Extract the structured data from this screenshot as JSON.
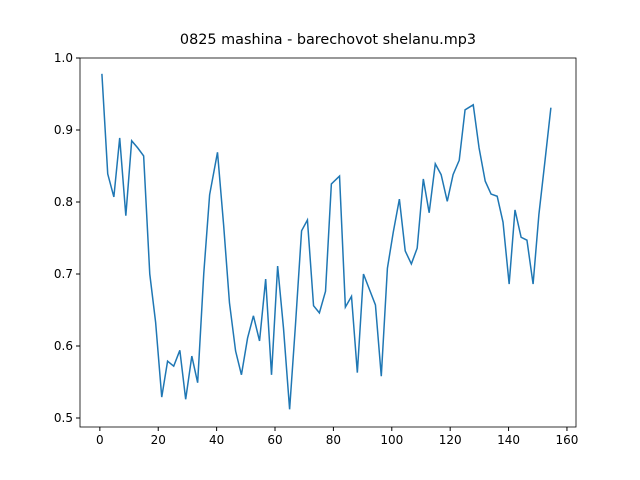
{
  "chart_data": {
    "type": "line",
    "title": "0825 mashina - barechovot shelanu.mp3",
    "x": [
      0.7,
      2.7,
      4.8,
      6.8,
      8.9,
      10.9,
      13.0,
      15.0,
      17.1,
      19.1,
      21.2,
      23.2,
      25.3,
      27.4,
      29.4,
      31.5,
      33.5,
      35.6,
      37.6,
      40.3,
      42.4,
      44.4,
      46.5,
      48.5,
      50.6,
      52.6,
      54.7,
      56.8,
      58.8,
      60.9,
      62.9,
      65.0,
      67.0,
      69.1,
      71.1,
      73.2,
      75.2,
      77.3,
      79.3,
      82.1,
      84.1,
      86.2,
      88.2,
      90.3,
      92.3,
      94.4,
      96.4,
      98.5,
      100.5,
      102.6,
      104.6,
      106.7,
      108.7,
      110.8,
      112.8,
      114.9,
      116.9,
      119.0,
      121.0,
      123.1,
      125.1,
      127.9,
      129.9,
      132.0,
      134.0,
      136.1,
      138.1,
      140.2,
      142.2,
      144.3,
      146.3,
      148.4,
      150.4,
      152.5,
      154.5
    ],
    "series": [
      {
        "color": "#1f77b4",
        "values": [
          0.978,
          0.839,
          0.807,
          0.889,
          0.781,
          0.885,
          0.875,
          0.864,
          0.7,
          0.633,
          0.529,
          0.579,
          0.572,
          0.594,
          0.526,
          0.586,
          0.549,
          0.701,
          0.81,
          0.869,
          0.768,
          0.66,
          0.593,
          0.56,
          0.611,
          0.642,
          0.607,
          0.693,
          0.56,
          0.711,
          0.625,
          0.512,
          0.629,
          0.76,
          0.775,
          0.656,
          0.646,
          0.676,
          0.825,
          0.836,
          0.654,
          0.669,
          0.563,
          0.7,
          0.679,
          0.657,
          0.558,
          0.708,
          0.758,
          0.804,
          0.732,
          0.714,
          0.736,
          0.832,
          0.785,
          0.853,
          0.838,
          0.801,
          0.838,
          0.858,
          0.928,
          0.935,
          0.875,
          0.829,
          0.811,
          0.808,
          0.772,
          0.686,
          0.789,
          0.751,
          0.747,
          0.686,
          0.783,
          0.858,
          0.931
        ]
      }
    ],
    "xlim": [
      -6.8,
      163.1
    ],
    "ylim": [
      0.4875,
      1.0
    ],
    "xticks": [
      0,
      20,
      40,
      60,
      80,
      100,
      120,
      140,
      160
    ],
    "yticks": [
      0.5,
      0.6,
      0.7,
      0.8,
      0.9,
      {
        "value": 1,
        "label": "1.0"
      }
    ]
  }
}
